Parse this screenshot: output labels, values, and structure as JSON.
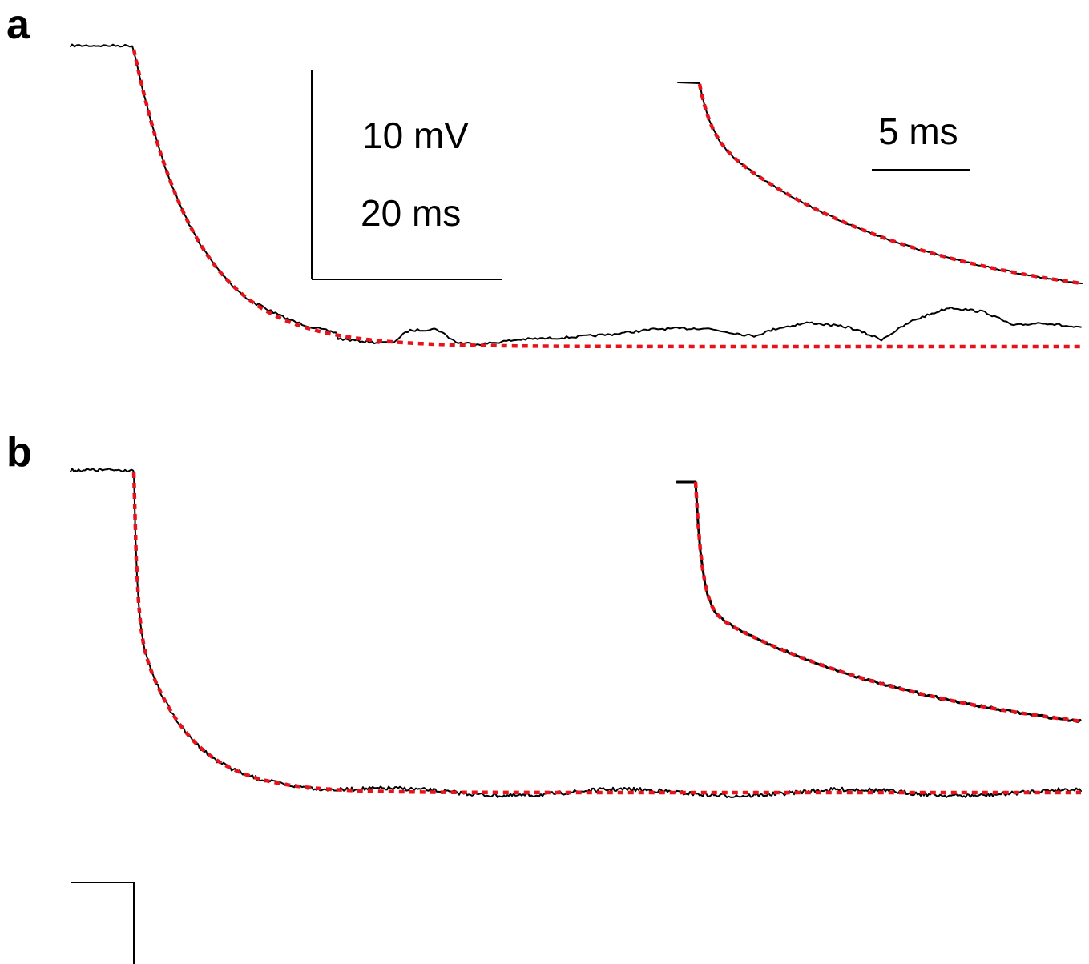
{
  "panels": [
    {
      "label": "a"
    },
    {
      "label": "b"
    }
  ],
  "scale_bars": {
    "main_voltage": "10 mV",
    "main_time": "20 ms",
    "inset_time": "5 ms"
  },
  "colors": {
    "trace": "#000000",
    "fit": "#e8121a",
    "inset_fit_b": "#000000"
  },
  "chart_data": [
    {
      "type": "line",
      "panel": "a",
      "title": "",
      "units": {
        "x": "ms",
        "y": "mV"
      },
      "scale": {
        "voltage_mV": 10,
        "time_ms": 20
      },
      "series": [
        {
          "role": "recorded-trace",
          "style": "solid",
          "color": "#000000"
        },
        {
          "role": "exponential-fit",
          "style": "dashed",
          "color": "#e8121a"
        }
      ],
      "inset": {
        "scale_time_ms": 5,
        "series": [
          "recorded-trace",
          "exponential-fit"
        ]
      }
    },
    {
      "type": "line",
      "panel": "b",
      "title": "",
      "units": {
        "x": "ms",
        "y": "mV"
      },
      "scale": {
        "voltage_mV": 10,
        "time_ms": 20
      },
      "series": [
        {
          "role": "recorded-trace",
          "style": "solid",
          "color": "#000000"
        },
        {
          "role": "exponential-fit",
          "style": "dashed",
          "color": "#e8121a"
        }
      ],
      "inset": {
        "scale_time_ms": 5,
        "series": [
          "recorded-trace",
          "exponential-fit"
        ]
      }
    }
  ]
}
